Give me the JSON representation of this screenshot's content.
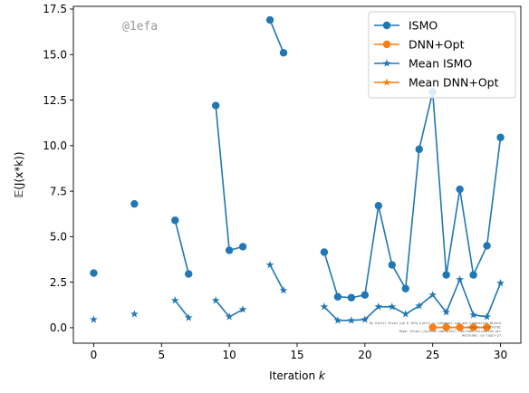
{
  "chart_data": {
    "type": "line",
    "xlabel": "Iteration",
    "xlabel_var": "k",
    "ylabel": "𝔼(J(x*k))",
    "xlim": [
      -1.5,
      31.5
    ],
    "ylim": [
      -0.85,
      17.65
    ],
    "xticks": [
      0,
      5,
      10,
      15,
      20,
      25,
      30
    ],
    "yticks": [
      0.0,
      2.5,
      5.0,
      7.5,
      10.0,
      12.5,
      15.0,
      17.5
    ],
    "xtick_labels": [
      "0",
      "5",
      "10",
      "15",
      "20",
      "25",
      "30"
    ],
    "ytick_labels": [
      "0.0",
      "2.5",
      "5.0",
      "7.5",
      "10.0",
      "12.5",
      "15.0",
      "17.5"
    ],
    "grid": false,
    "legend_position": "top-right",
    "series": [
      {
        "name": "ISMO",
        "color": "#1f77b4",
        "marker": "circle",
        "segments": [
          [
            [
              0,
              3.0
            ]
          ],
          [
            [
              3,
              6.8
            ]
          ],
          [
            [
              6,
              5.9
            ],
            [
              7,
              2.95
            ]
          ],
          [
            [
              9,
              12.2
            ],
            [
              10,
              4.25
            ],
            [
              11,
              4.45
            ]
          ],
          [
            [
              13,
              16.9
            ],
            [
              14,
              15.1
            ]
          ],
          [
            [
              17,
              4.15
            ],
            [
              18,
              1.7
            ],
            [
              19,
              1.65
            ],
            [
              20,
              1.8
            ],
            [
              21,
              6.7
            ],
            [
              22,
              3.45
            ],
            [
              23,
              2.15
            ],
            [
              24,
              9.8
            ],
            [
              25,
              12.95
            ],
            [
              26,
              2.9
            ],
            [
              27,
              7.6
            ],
            [
              28,
              2.9
            ],
            [
              29,
              4.5
            ],
            [
              30,
              10.45
            ]
          ]
        ]
      },
      {
        "name": "DNN+Opt",
        "color": "#ff7f0e",
        "marker": "circle",
        "segments": [
          [
            [
              25,
              0.02
            ],
            [
              26,
              0.02
            ],
            [
              27,
              0.02
            ],
            [
              28,
              0.02
            ],
            [
              29,
              0.02
            ]
          ]
        ]
      },
      {
        "name": "Mean ISMO",
        "color": "#1f77b4",
        "marker": "star",
        "segments": [
          [
            [
              0,
              0.45
            ]
          ],
          [
            [
              3,
              0.75
            ]
          ],
          [
            [
              6,
              1.5
            ],
            [
              7,
              0.55
            ]
          ],
          [
            [
              9,
              1.5
            ],
            [
              10,
              0.6
            ],
            [
              11,
              1.0
            ]
          ],
          [
            [
              13,
              3.45
            ],
            [
              14,
              2.05
            ]
          ],
          [
            [
              17,
              1.15
            ],
            [
              18,
              0.4
            ],
            [
              19,
              0.4
            ],
            [
              20,
              0.45
            ],
            [
              21,
              1.15
            ],
            [
              22,
              1.15
            ],
            [
              23,
              0.75
            ],
            [
              24,
              1.2
            ],
            [
              25,
              1.8
            ],
            [
              26,
              0.85
            ],
            [
              27,
              2.65
            ],
            [
              28,
              0.7
            ],
            [
              29,
              0.6
            ],
            [
              30,
              2.45
            ]
          ]
        ]
      },
      {
        "name": "Mean DNN+Opt",
        "color": "#ff7f0e",
        "marker": "star",
        "segments": [
          [
            [
              25,
              0.01
            ],
            [
              26,
              0.01
            ],
            [
              27,
              0.01
            ],
            [
              28,
              0.01
            ],
            [
              29,
              0.01
            ]
          ]
        ]
      }
    ]
  },
  "watermark": "@1efa",
  "footer_lines": [
    "By Kjetil Olsen Lye @ 1efa kjetil.o.lye@gmail.com and Siddhartha Mishra",
    "Commit: 1efaf41f8c",
    "Repo: https://github.com/kjetil-lye/ismo_validation.git",
    "Hostname: ex-login-27"
  ]
}
